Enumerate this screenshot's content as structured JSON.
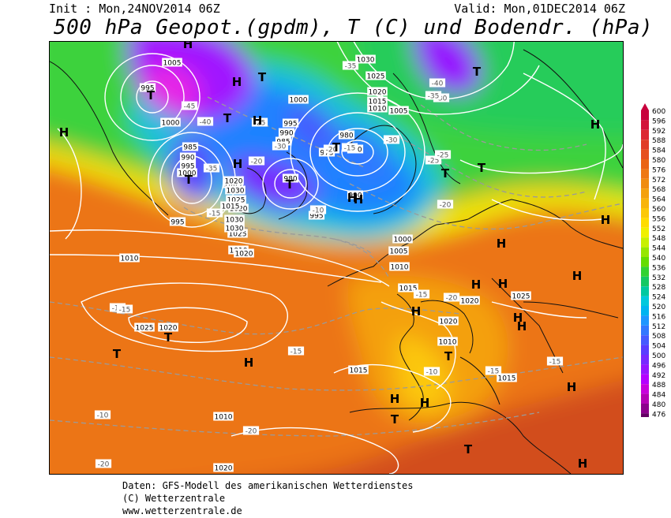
{
  "header": {
    "init": "Init : Mon,24NOV2014 06Z",
    "valid": "Valid: Mon,01DEC2014 06Z",
    "title": "500 hPa Geopot.(gpdm), T (C) und Bodendr. (hPa)"
  },
  "footer": {
    "line1": "Daten: GFS-Modell des amerikanischen Wetterdienstes",
    "line2": "(C) Wetterzentrale",
    "line3": "www.wetterzentrale.de"
  },
  "legend": {
    "values": [
      "600",
      "596",
      "592",
      "588",
      "584",
      "580",
      "576",
      "572",
      "568",
      "564",
      "560",
      "556",
      "552",
      "548",
      "544",
      "540",
      "536",
      "532",
      "528",
      "524",
      "520",
      "516",
      "512",
      "508",
      "504",
      "500",
      "496",
      "492",
      "488",
      "484",
      "480",
      "476"
    ],
    "colors": [
      "#c8003c",
      "#d2143c",
      "#dc2832",
      "#e03c28",
      "#e6501e",
      "#ea6414",
      "#ee7814",
      "#f08c10",
      "#f4a00c",
      "#f8b40a",
      "#fcc808",
      "#ffdc00",
      "#f0f000",
      "#c8f000",
      "#96e600",
      "#64dc00",
      "#32d232",
      "#14c864",
      "#00c8a0",
      "#00c8dc",
      "#00b4f0",
      "#1e96ff",
      "#3278ff",
      "#465aff",
      "#5a3cff",
      "#7828ff",
      "#9614ff",
      "#b400ff",
      "#c800dc",
      "#b400b4",
      "#8c008c",
      "#640064"
    ]
  },
  "map": {
    "pressure_labels": [
      "1005",
      "995",
      "1000",
      "985",
      "990",
      "995",
      "1000",
      "1005",
      "1010",
      "995",
      "1030",
      "1025",
      "1020",
      "1015",
      "1010",
      "1005",
      "1000",
      "995",
      "990",
      "985",
      "980",
      "975",
      "970",
      "980",
      "990",
      "995",
      "1000",
      "1005",
      "1010",
      "1015",
      "1020",
      "1025",
      "1030",
      "1030",
      "1020",
      "1025",
      "1030",
      "1020",
      "1015",
      "1010",
      "1025",
      "1020",
      "1015",
      "1010",
      "1020",
      "1025",
      "1020",
      "1015",
      "1010",
      "1020"
    ],
    "temp_labels": [
      "-45",
      "-40",
      "-35",
      "-30",
      "-25",
      "-20",
      "-15",
      "-10",
      "-20",
      "-15",
      "-25",
      "-30",
      "-35",
      "-40",
      "-35",
      "-30",
      "-25",
      "-20",
      "-15",
      "-20",
      "-15",
      "-10",
      "-10",
      "-15",
      "-20",
      "-15",
      "-20",
      "-15",
      "-15"
    ],
    "centers": [
      "T",
      "H",
      "T",
      "H",
      "T",
      "H",
      "T",
      "T",
      "T",
      "H",
      "T",
      "H",
      "T",
      "H",
      "T",
      "H",
      "H",
      "H",
      "H",
      "H",
      "H",
      "T",
      "H",
      "H",
      "T",
      "H",
      "H",
      "H",
      "T",
      "H",
      "H",
      "T",
      "H",
      "T",
      "H"
    ]
  }
}
